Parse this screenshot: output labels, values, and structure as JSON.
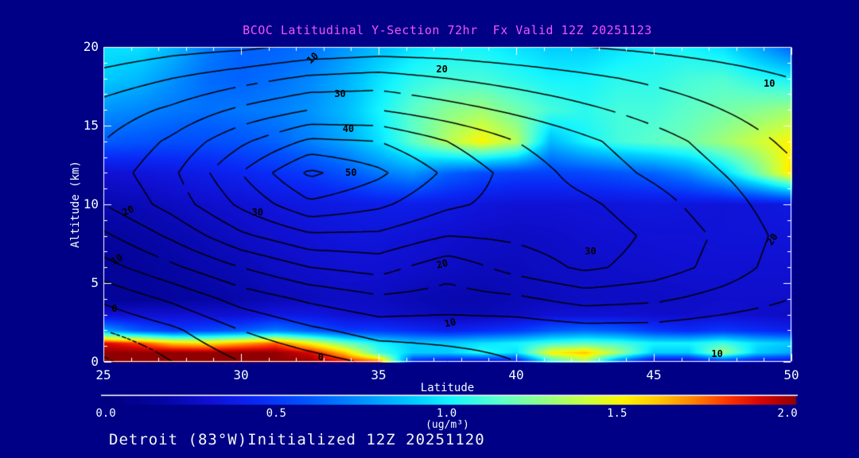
{
  "title": "BCOC Latitudinal Y-Section 72hr  Fx Valid 12Z 20251123",
  "footer": "Detroit (83°W)Initialized 12Z 20251120",
  "colors": {
    "background": "#000087",
    "title_text": "#F355F3",
    "axis_text": "#F5FFFF",
    "footer_text": "#F5F5F5",
    "axis_line": "#FFFFFF",
    "contour_line": "#000000"
  },
  "chart_data": {
    "type": "heatmap",
    "xlabel": "Latitude",
    "ylabel": "Altitude (km)",
    "xlim": [
      25,
      50
    ],
    "ylim": [
      0,
      20
    ],
    "x_ticks": [
      25,
      30,
      35,
      40,
      45,
      50
    ],
    "x_minor_step": 1,
    "y_ticks": [
      0,
      5,
      10,
      15,
      20
    ],
    "y_minor_step": 1,
    "colorbar": {
      "min": 0,
      "max": 2,
      "tick_labels": [
        "0.0",
        "0.5",
        "1.0",
        "1.5",
        "2.0"
      ],
      "units": "(ug/m³)"
    },
    "colormap": [
      [
        0.0,
        0,
        0,
        125
      ],
      [
        0.08,
        5,
        5,
        160
      ],
      [
        0.15,
        16,
        16,
        210
      ],
      [
        0.22,
        10,
        40,
        245
      ],
      [
        0.3,
        0,
        90,
        255
      ],
      [
        0.38,
        0,
        150,
        255
      ],
      [
        0.45,
        0,
        205,
        255
      ],
      [
        0.5,
        20,
        245,
        255
      ],
      [
        0.57,
        90,
        255,
        205
      ],
      [
        0.64,
        150,
        255,
        130
      ],
      [
        0.7,
        205,
        255,
        60
      ],
      [
        0.75,
        255,
        245,
        0
      ],
      [
        0.8,
        255,
        200,
        0
      ],
      [
        0.85,
        255,
        135,
        0
      ],
      [
        0.9,
        255,
        55,
        0
      ],
      [
        0.95,
        215,
        5,
        5
      ],
      [
        1.0,
        145,
        0,
        0
      ]
    ],
    "fill_field": {
      "lats": [
        25,
        26.25,
        27.5,
        28.75,
        30,
        31.25,
        32.5,
        33.75,
        35,
        36.25,
        37.5,
        38.75,
        40,
        41.25,
        42.5,
        43.75,
        45,
        46.25,
        47.5,
        48.75,
        50
      ],
      "alts": [
        0,
        0.6,
        1.2,
        2,
        3,
        4,
        6,
        8,
        10,
        12,
        14,
        16,
        18,
        20
      ],
      "values": [
        [
          2,
          2,
          2,
          2,
          2,
          2,
          2,
          1.9,
          1.8,
          0.4,
          0.3,
          0.25,
          0.3,
          1,
          1.3,
          0.6,
          0.2,
          0.2,
          0.4,
          0.3,
          0.25
        ],
        [
          2,
          2,
          2,
          2,
          2,
          2,
          1.9,
          1.6,
          1.1,
          0.9,
          0.9,
          1.05,
          0.95,
          1.5,
          1.6,
          1.3,
          0.9,
          0.9,
          1.3,
          0.9,
          0.8
        ],
        [
          1.9,
          1.8,
          1.6,
          1.55,
          1.65,
          1.75,
          1.5,
          1.2,
          1,
          0.9,
          0.9,
          0.95,
          1,
          1.1,
          1.15,
          1.1,
          1,
          1,
          1.1,
          0.95,
          0.9
        ],
        [
          0.8,
          0.6,
          0.5,
          0.55,
          0.6,
          0.7,
          0.6,
          0.5,
          0.5,
          0.45,
          0.4,
          0.45,
          0.5,
          0.6,
          0.65,
          0.6,
          0.5,
          0.45,
          0.5,
          0.45,
          0.4
        ],
        [
          0.3,
          0.3,
          0.3,
          0.3,
          0.3,
          0.35,
          0.35,
          0.3,
          0.28,
          0.25,
          0.22,
          0.22,
          0.25,
          0.3,
          0.3,
          0.3,
          0.28,
          0.28,
          0.3,
          0.28,
          0.26
        ],
        [
          0.12,
          0.13,
          0.15,
          0.17,
          0.19,
          0.22,
          0.24,
          0.26,
          0.25,
          0.22,
          0.2,
          0.2,
          0.22,
          0.24,
          0.26,
          0.26,
          0.26,
          0.27,
          0.28,
          0.28,
          0.28
        ],
        [
          0.12,
          0.14,
          0.17,
          0.2,
          0.22,
          0.26,
          0.28,
          0.3,
          0.3,
          0.28,
          0.26,
          0.24,
          0.24,
          0.26,
          0.27,
          0.28,
          0.29,
          0.3,
          0.3,
          0.3,
          0.3
        ],
        [
          0.15,
          0.17,
          0.2,
          0.23,
          0.26,
          0.29,
          0.31,
          0.33,
          0.33,
          0.31,
          0.29,
          0.27,
          0.26,
          0.27,
          0.29,
          0.3,
          0.31,
          0.31,
          0.32,
          0.32,
          0.32
        ],
        [
          0.2,
          0.22,
          0.25,
          0.28,
          0.3,
          0.33,
          0.35,
          0.36,
          0.38,
          0.38,
          0.36,
          0.33,
          0.31,
          0.31,
          0.32,
          0.33,
          0.34,
          0.33,
          0.32,
          0.33,
          0.35
        ],
        [
          0.3,
          0.32,
          0.35,
          0.38,
          0.42,
          0.46,
          0.5,
          0.58,
          0.68,
          0.75,
          0.62,
          0.55,
          0.52,
          0.52,
          0.54,
          0.58,
          0.62,
          0.72,
          0.9,
          1.2,
          1.55
        ],
        [
          0.6,
          0.58,
          0.56,
          0.56,
          0.58,
          0.62,
          0.7,
          0.8,
          0.95,
          1.15,
          1.35,
          1.5,
          1.35,
          0.85,
          1,
          1.1,
          1.15,
          1.2,
          1.3,
          1.4,
          1.5
        ],
        [
          0.75,
          0.72,
          0.68,
          0.66,
          0.68,
          0.7,
          0.75,
          0.85,
          1,
          1.15,
          1.25,
          1.3,
          1.2,
          1.1,
          1.05,
          1.1,
          1.1,
          1.15,
          1.2,
          1.25,
          1.3
        ],
        [
          0.9,
          0.85,
          0.75,
          0.65,
          0.62,
          0.66,
          0.72,
          0.82,
          0.95,
          1.05,
          1.1,
          1.1,
          1.05,
          1,
          1,
          1.05,
          1.05,
          1.1,
          1.12,
          1.05,
          1
        ],
        [
          0.95,
          0.95,
          0.85,
          0.7,
          0.62,
          0.62,
          0.66,
          0.76,
          0.86,
          0.95,
          1,
          1,
          0.95,
          0.9,
          0.9,
          0.95,
          1,
          1,
          0.95,
          0.8,
          0.62
        ]
      ]
    },
    "line_field": {
      "lats": [
        25,
        27.5,
        30,
        32.5,
        35,
        37.5,
        40,
        42.5,
        45,
        47.5,
        50
      ],
      "alts": [
        0,
        2,
        4,
        6,
        8,
        10,
        12,
        14,
        16,
        18,
        20
      ],
      "levels_min": -10,
      "levels_max": 50,
      "levels_step": 5,
      "negative_style": "dashed",
      "values": [
        [
          -11,
          -5,
          0,
          3,
          6,
          8,
          10,
          11,
          10,
          10,
          10
        ],
        [
          -5,
          -1,
          5,
          9,
          12,
          12,
          12,
          13,
          13,
          12,
          11
        ],
        [
          1,
          6,
          12,
          16,
          19,
          18,
          19,
          22,
          21,
          18,
          15
        ],
        [
          8,
          14,
          20,
          25,
          27,
          22,
          27,
          31,
          28,
          23,
          17
        ],
        [
          14,
          21,
          29,
          34,
          34,
          30,
          31,
          33,
          29,
          24,
          18
        ],
        [
          20,
          27,
          36,
          44,
          41,
          36,
          33,
          31,
          27,
          22,
          17
        ],
        [
          22,
          29,
          40,
          51,
          46,
          39,
          33,
          28,
          24,
          20,
          16
        ],
        [
          20,
          26,
          34,
          41,
          40,
          35,
          30,
          26,
          22,
          18,
          14
        ],
        [
          17,
          21,
          26,
          30,
          30,
          27,
          24,
          21,
          18,
          15,
          12
        ],
        [
          12,
          15,
          18,
          21,
          22,
          20,
          18,
          16,
          14,
          12,
          10
        ],
        [
          6,
          8,
          9,
          11,
          12,
          12,
          11,
          10,
          9,
          8,
          7
        ]
      ]
    },
    "contour_labels": [
      {
        "lat": 32.6,
        "alt": 19.3,
        "text": "10",
        "rot": -42
      },
      {
        "lat": 37.3,
        "alt": 18.6,
        "text": "20",
        "rot": 0
      },
      {
        "lat": 33.6,
        "alt": 17.0,
        "text": "30",
        "rot": 0
      },
      {
        "lat": 33.9,
        "alt": 14.8,
        "text": "40",
        "rot": 0
      },
      {
        "lat": 34.0,
        "alt": 12.0,
        "text": "50",
        "rot": 0
      },
      {
        "lat": 49.2,
        "alt": 17.7,
        "text": "10",
        "rot": 0
      },
      {
        "lat": 25.9,
        "alt": 9.6,
        "text": "20",
        "rot": -25
      },
      {
        "lat": 30.6,
        "alt": 9.5,
        "text": "30",
        "rot": 0
      },
      {
        "lat": 25.5,
        "alt": 6.5,
        "text": "10",
        "rot": -30
      },
      {
        "lat": 25.4,
        "alt": 3.4,
        "text": "0",
        "rot": 0
      },
      {
        "lat": 42.7,
        "alt": 7.0,
        "text": "30",
        "rot": 0
      },
      {
        "lat": 37.3,
        "alt": 6.2,
        "text": "20",
        "rot": -15
      },
      {
        "lat": 37.6,
        "alt": 2.5,
        "text": "10",
        "rot": -12
      },
      {
        "lat": 49.3,
        "alt": 7.8,
        "text": "20",
        "rot": -55
      },
      {
        "lat": 47.3,
        "alt": 0.5,
        "text": "10",
        "rot": 0
      },
      {
        "lat": 32.9,
        "alt": 0.3,
        "text": "0",
        "rot": 0
      }
    ]
  }
}
